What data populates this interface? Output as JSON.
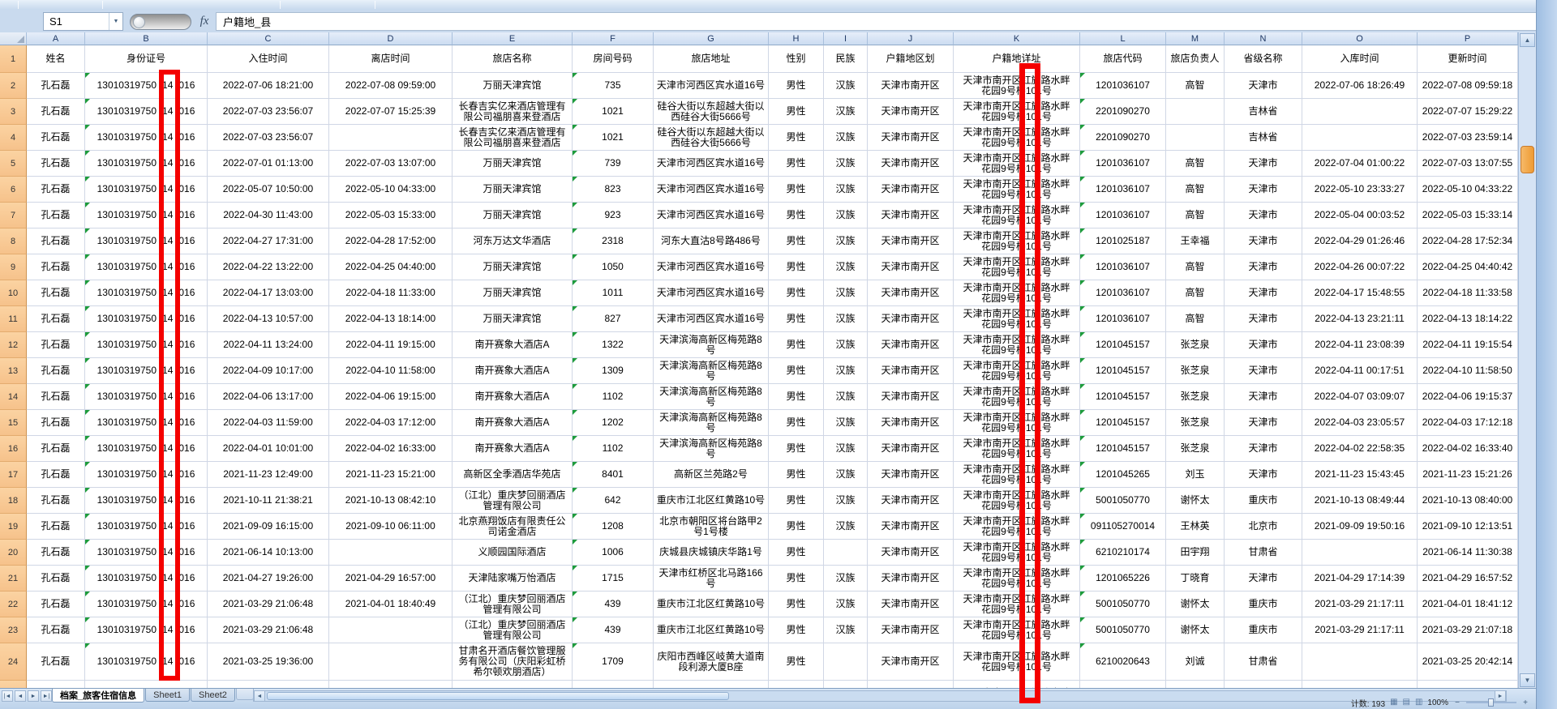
{
  "formula_bar": {
    "name_box": "S1",
    "fx": "fx",
    "value": "户籍地_县"
  },
  "column_letters": [
    "A",
    "B",
    "C",
    "D",
    "E",
    "F",
    "G",
    "H",
    "I",
    "J",
    "K",
    "L",
    "M",
    "N",
    "O",
    "P"
  ],
  "table": {
    "headers": [
      "姓名",
      "身份证号",
      "入住时间",
      "离店时间",
      "旅店名称",
      "房间号码",
      "旅店地址",
      "性别",
      "民族",
      "户籍地区划",
      "户籍地详址",
      "旅店代码",
      "旅店负责人",
      "省级名称",
      "入库时间",
      "更新时间"
    ],
    "reg_detail_lines": [
      "天津市南开区红旗路水畔",
      "花园9号楼101号"
    ],
    "rows": [
      {
        "n": "2",
        "name": "孔石磊",
        "id1": "13010319750",
        "id2": "14",
        "id3": "016",
        "in_time": "2022-07-06 18:21:00",
        "out_time": "2022-07-08 09:59:00",
        "hotel": "万丽天津宾馆",
        "room": "735",
        "hotel_addr": "天津市河西区宾水道16号",
        "sex": "男性",
        "ethnic": "汉族",
        "reg_area": "天津市南开区",
        "code": "1201036107",
        "manager": "高智",
        "province": "天津市",
        "db_time": "2022-07-06 18:26:49",
        "update_time": "2022-07-08 09:59:18"
      },
      {
        "n": "3",
        "name": "孔石磊",
        "id1": "13010319750",
        "id2": "14",
        "id3": "016",
        "in_time": "2022-07-03 23:56:07",
        "out_time": "2022-07-07 15:25:39",
        "hotel": "长春吉实亿来酒店管理有限公司福朋喜来登酒店",
        "room": "1021",
        "hotel_addr": "硅谷大街以东超越大街以西硅谷大街5666号",
        "sex": "男性",
        "ethnic": "汉族",
        "reg_area": "天津市南开区",
        "code": "2201090270",
        "manager": "",
        "province": "吉林省",
        "db_time": "",
        "update_time": "2022-07-07 15:29:22"
      },
      {
        "n": "4",
        "name": "孔石磊",
        "id1": "13010319750",
        "id2": "14",
        "id3": "016",
        "in_time": "2022-07-03 23:56:07",
        "out_time": "",
        "hotel": "长春吉实亿来酒店管理有限公司福朋喜来登酒店",
        "room": "1021",
        "hotel_addr": "硅谷大街以东超越大街以西硅谷大街5666号",
        "sex": "男性",
        "ethnic": "汉族",
        "reg_area": "天津市南开区",
        "code": "2201090270",
        "manager": "",
        "province": "吉林省",
        "db_time": "",
        "update_time": "2022-07-03 23:59:14"
      },
      {
        "n": "5",
        "name": "孔石磊",
        "id1": "13010319750",
        "id2": "14",
        "id3": "016",
        "in_time": "2022-07-01 01:13:00",
        "out_time": "2022-07-03 13:07:00",
        "hotel": "万丽天津宾馆",
        "room": "739",
        "hotel_addr": "天津市河西区宾水道16号",
        "sex": "男性",
        "ethnic": "汉族",
        "reg_area": "天津市南开区",
        "code": "1201036107",
        "manager": "高智",
        "province": "天津市",
        "db_time": "2022-07-04 01:00:22",
        "update_time": "2022-07-03 13:07:55"
      },
      {
        "n": "6",
        "name": "孔石磊",
        "id1": "13010319750",
        "id2": "14",
        "id3": "016",
        "in_time": "2022-05-07 10:50:00",
        "out_time": "2022-05-10 04:33:00",
        "hotel": "万丽天津宾馆",
        "room": "823",
        "hotel_addr": "天津市河西区宾水道16号",
        "sex": "男性",
        "ethnic": "汉族",
        "reg_area": "天津市南开区",
        "code": "1201036107",
        "manager": "高智",
        "province": "天津市",
        "db_time": "2022-05-10 23:33:27",
        "update_time": "2022-05-10 04:33:22"
      },
      {
        "n": "7",
        "name": "孔石磊",
        "id1": "13010319750",
        "id2": "14",
        "id3": "016",
        "in_time": "2022-04-30 11:43:00",
        "out_time": "2022-05-03 15:33:00",
        "hotel": "万丽天津宾馆",
        "room": "923",
        "hotel_addr": "天津市河西区宾水道16号",
        "sex": "男性",
        "ethnic": "汉族",
        "reg_area": "天津市南开区",
        "code": "1201036107",
        "manager": "高智",
        "province": "天津市",
        "db_time": "2022-05-04 00:03:52",
        "update_time": "2022-05-03 15:33:14"
      },
      {
        "n": "8",
        "name": "孔石磊",
        "id1": "13010319750",
        "id2": "14",
        "id3": "016",
        "in_time": "2022-04-27 17:31:00",
        "out_time": "2022-04-28 17:52:00",
        "hotel": "河东万达文华酒店",
        "room": "2318",
        "hotel_addr": "河东大直沽8号路486号",
        "sex": "男性",
        "ethnic": "汉族",
        "reg_area": "天津市南开区",
        "code": "1201025187",
        "manager": "王幸福",
        "province": "天津市",
        "db_time": "2022-04-29 01:26:46",
        "update_time": "2022-04-28 17:52:34"
      },
      {
        "n": "9",
        "name": "孔石磊",
        "id1": "13010319750",
        "id2": "14",
        "id3": "016",
        "in_time": "2022-04-22 13:22:00",
        "out_time": "2022-04-25 04:40:00",
        "hotel": "万丽天津宾馆",
        "room": "1050",
        "hotel_addr": "天津市河西区宾水道16号",
        "sex": "男性",
        "ethnic": "汉族",
        "reg_area": "天津市南开区",
        "code": "1201036107",
        "manager": "高智",
        "province": "天津市",
        "db_time": "2022-04-26 00:07:22",
        "update_time": "2022-04-25 04:40:42"
      },
      {
        "n": "10",
        "name": "孔石磊",
        "id1": "13010319750",
        "id2": "14",
        "id3": "016",
        "in_time": "2022-04-17 13:03:00",
        "out_time": "2022-04-18 11:33:00",
        "hotel": "万丽天津宾馆",
        "room": "1011",
        "hotel_addr": "天津市河西区宾水道16号",
        "sex": "男性",
        "ethnic": "汉族",
        "reg_area": "天津市南开区",
        "code": "1201036107",
        "manager": "高智",
        "province": "天津市",
        "db_time": "2022-04-17 15:48:55",
        "update_time": "2022-04-18 11:33:58"
      },
      {
        "n": "11",
        "name": "孔石磊",
        "id1": "13010319750",
        "id2": "14",
        "id3": "016",
        "in_time": "2022-04-13 10:57:00",
        "out_time": "2022-04-13 18:14:00",
        "hotel": "万丽天津宾馆",
        "room": "827",
        "hotel_addr": "天津市河西区宾水道16号",
        "sex": "男性",
        "ethnic": "汉族",
        "reg_area": "天津市南开区",
        "code": "1201036107",
        "manager": "高智",
        "province": "天津市",
        "db_time": "2022-04-13 23:21:11",
        "update_time": "2022-04-13 18:14:22"
      },
      {
        "n": "12",
        "name": "孔石磊",
        "id1": "13010319750",
        "id2": "14",
        "id3": "016",
        "in_time": "2022-04-11 13:24:00",
        "out_time": "2022-04-11 19:15:00",
        "hotel": "南开赛象大酒店A",
        "room": "1322",
        "hotel_addr": "天津滨海高新区梅苑路8号",
        "sex": "男性",
        "ethnic": "汉族",
        "reg_area": "天津市南开区",
        "code": "1201045157",
        "manager": "张芝泉",
        "province": "天津市",
        "db_time": "2022-04-11 23:08:39",
        "update_time": "2022-04-11 19:15:54"
      },
      {
        "n": "13",
        "name": "孔石磊",
        "id1": "13010319750",
        "id2": "14",
        "id3": "016",
        "in_time": "2022-04-09 10:17:00",
        "out_time": "2022-04-10 11:58:00",
        "hotel": "南开赛象大酒店A",
        "room": "1309",
        "hotel_addr": "天津滨海高新区梅苑路8号",
        "sex": "男性",
        "ethnic": "汉族",
        "reg_area": "天津市南开区",
        "code": "1201045157",
        "manager": "张芝泉",
        "province": "天津市",
        "db_time": "2022-04-11 00:17:51",
        "update_time": "2022-04-10 11:58:50"
      },
      {
        "n": "14",
        "name": "孔石磊",
        "id1": "13010319750",
        "id2": "14",
        "id3": "016",
        "in_time": "2022-04-06 13:17:00",
        "out_time": "2022-04-06 19:15:00",
        "hotel": "南开赛象大酒店A",
        "room": "1102",
        "hotel_addr": "天津滨海高新区梅苑路8号",
        "sex": "男性",
        "ethnic": "汉族",
        "reg_area": "天津市南开区",
        "code": "1201045157",
        "manager": "张芝泉",
        "province": "天津市",
        "db_time": "2022-04-07 03:09:07",
        "update_time": "2022-04-06 19:15:37"
      },
      {
        "n": "15",
        "name": "孔石磊",
        "id1": "13010319750",
        "id2": "14",
        "id3": "016",
        "in_time": "2022-04-03 11:59:00",
        "out_time": "2022-04-03 17:12:00",
        "hotel": "南开赛象大酒店A",
        "room": "1202",
        "hotel_addr": "天津滨海高新区梅苑路8号",
        "sex": "男性",
        "ethnic": "汉族",
        "reg_area": "天津市南开区",
        "code": "1201045157",
        "manager": "张芝泉",
        "province": "天津市",
        "db_time": "2022-04-03 23:05:57",
        "update_time": "2022-04-03 17:12:18"
      },
      {
        "n": "16",
        "name": "孔石磊",
        "id1": "13010319750",
        "id2": "14",
        "id3": "016",
        "in_time": "2022-04-01 10:01:00",
        "out_time": "2022-04-02 16:33:00",
        "hotel": "南开赛象大酒店A",
        "room": "1102",
        "hotel_addr": "天津滨海高新区梅苑路8号",
        "sex": "男性",
        "ethnic": "汉族",
        "reg_area": "天津市南开区",
        "code": "1201045157",
        "manager": "张芝泉",
        "province": "天津市",
        "db_time": "2022-04-02 22:58:35",
        "update_time": "2022-04-02 16:33:40"
      },
      {
        "n": "17",
        "name": "孔石磊",
        "id1": "13010319750",
        "id2": "14",
        "id3": "016",
        "in_time": "2021-11-23 12:49:00",
        "out_time": "2021-11-23 15:21:00",
        "hotel": "高新区全季酒店华苑店",
        "room": "8401",
        "hotel_addr": "高新区兰苑路2号",
        "sex": "男性",
        "ethnic": "汉族",
        "reg_area": "天津市南开区",
        "code": "1201045265",
        "manager": "刘玉",
        "province": "天津市",
        "db_time": "2021-11-23 15:43:45",
        "update_time": "2021-11-23 15:21:26"
      },
      {
        "n": "18",
        "name": "孔石磊",
        "id1": "13010319750",
        "id2": "14",
        "id3": "016",
        "in_time": "2021-10-11 21:38:21",
        "out_time": "2021-10-13 08:42:10",
        "hotel": "（江北）重庆梦回丽酒店管理有限公司",
        "room": "642",
        "hotel_addr": "重庆市江北区红黄路10号",
        "sex": "男性",
        "ethnic": "汉族",
        "reg_area": "天津市南开区",
        "code": "5001050770",
        "manager": "谢怀太",
        "province": "重庆市",
        "db_time": "2021-10-13 08:49:44",
        "update_time": "2021-10-13 08:40:00"
      },
      {
        "n": "19",
        "name": "孔石磊",
        "id1": "13010319750",
        "id2": "14",
        "id3": "016",
        "in_time": "2021-09-09 16:15:00",
        "out_time": "2021-09-10 06:11:00",
        "hotel": "北京燕翔饭店有限责任公司诺金酒店",
        "room": "1208",
        "hotel_addr": "北京市朝阳区将台路甲2号1号楼",
        "sex": "男性",
        "ethnic": "汉族",
        "reg_area": "天津市南开区",
        "code": "091105270014",
        "manager": "王林英",
        "province": "北京市",
        "db_time": "2021-09-09 19:50:16",
        "update_time": "2021-09-10 12:13:51"
      },
      {
        "n": "20",
        "name": "孔石磊",
        "id1": "13010319750",
        "id2": "14",
        "id3": "016",
        "in_time": "2021-06-14 10:13:00",
        "out_time": "",
        "hotel": "义顺园国际酒店",
        "room": "1006",
        "hotel_addr": "庆城县庆城镇庆华路1号",
        "sex": "男性",
        "ethnic": "",
        "reg_area": "天津市南开区",
        "code": "6210210174",
        "manager": "田宇翔",
        "province": "甘肃省",
        "db_time": "",
        "update_time": "2021-06-14 11:30:38"
      },
      {
        "n": "21",
        "name": "孔石磊",
        "id1": "13010319750",
        "id2": "14",
        "id3": "016",
        "in_time": "2021-04-27 19:26:00",
        "out_time": "2021-04-29 16:57:00",
        "hotel": "天津陆家嘴万怡酒店",
        "room": "1715",
        "hotel_addr": "天津市红桥区北马路166号",
        "sex": "男性",
        "ethnic": "汉族",
        "reg_area": "天津市南开区",
        "code": "1201065226",
        "manager": "丁晓育",
        "province": "天津市",
        "db_time": "2021-04-29 17:14:39",
        "update_time": "2021-04-29 16:57:52"
      },
      {
        "n": "22",
        "name": "孔石磊",
        "id1": "13010319750",
        "id2": "14",
        "id3": "016",
        "in_time": "2021-03-29 21:06:48",
        "out_time": "2021-04-01 18:40:49",
        "hotel": "（江北）重庆梦回丽酒店管理有限公司",
        "room": "439",
        "hotel_addr": "重庆市江北区红黄路10号",
        "sex": "男性",
        "ethnic": "汉族",
        "reg_area": "天津市南开区",
        "code": "5001050770",
        "manager": "谢怀太",
        "province": "重庆市",
        "db_time": "2021-03-29 21:17:11",
        "update_time": "2021-04-01 18:41:12"
      },
      {
        "n": "23",
        "name": "孔石磊",
        "id1": "13010319750",
        "id2": "14",
        "id3": "016",
        "in_time": "2021-03-29 21:06:48",
        "out_time": "",
        "hotel": "（江北）重庆梦回丽酒店管理有限公司",
        "room": "439",
        "hotel_addr": "重庆市江北区红黄路10号",
        "sex": "男性",
        "ethnic": "汉族",
        "reg_area": "天津市南开区",
        "code": "5001050770",
        "manager": "谢怀太",
        "province": "重庆市",
        "db_time": "2021-03-29 21:17:11",
        "update_time": "2021-03-29 21:07:18"
      },
      {
        "n": "24",
        "name": "孔石磊",
        "id1": "13010319750",
        "id2": "14",
        "id3": "016",
        "in_time": "2021-03-25 19:36:00",
        "out_time": "",
        "hotel": "甘肃名开酒店餐饮管理服务有限公司（庆阳彩虹桥希尔顿欢朋酒店）",
        "room": "1709",
        "hotel_addr": "庆阳市西峰区岐黄大道南段利源大厦B座",
        "sex": "男性",
        "ethnic": "",
        "reg_area": "天津市南开区",
        "code": "6210020643",
        "manager": "刘诚",
        "province": "甘肃省",
        "db_time": "",
        "update_time": "2021-03-25 20:42:14"
      }
    ],
    "partial_row_number": "25"
  },
  "sheet_tabs": {
    "tabs": [
      "档案_旅客住宿信息",
      "Sheet1",
      "Sheet2"
    ],
    "nav": [
      "|◄",
      "◄",
      "►",
      "►|"
    ]
  },
  "status_bar": {
    "count": "计数: 193",
    "zoom": "100%",
    "zoom_out": "−",
    "zoom_in": "+"
  },
  "colors": {
    "annotation_red": "#F40000",
    "green_flag": "#1E9C3C",
    "gutter_orange": "#F6C28B",
    "gridline": "#D0D7E5"
  }
}
